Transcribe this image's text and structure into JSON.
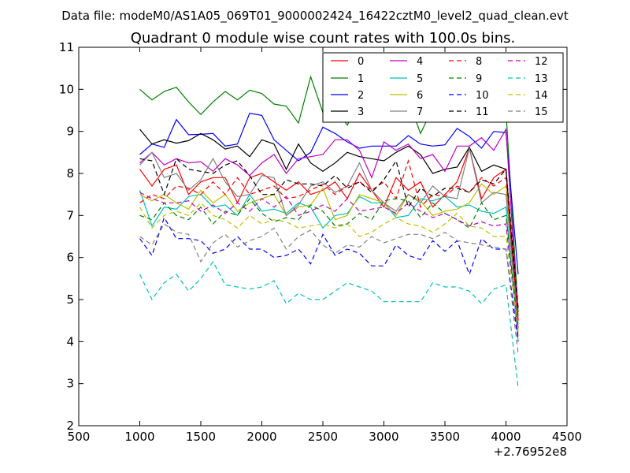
{
  "chart_data": {
    "type": "line",
    "suptitle": "Data file: modeM0/AS1A05_069T01_9000002424_16422cztM0_level2_quad_clean.evt",
    "title": "Quadrant 0 module wise count rates with 100.0s bins.",
    "xlabel": "",
    "ylabel": "",
    "x_offset_label": "+2.76952e8",
    "xlim": [
      500,
      4500
    ],
    "ylim": [
      2,
      11
    ],
    "xticks": [
      "500",
      "1000",
      "1500",
      "2000",
      "2500",
      "3000",
      "3500",
      "4000",
      "4500"
    ],
    "yticks": [
      "2",
      "3",
      "4",
      "5",
      "6",
      "7",
      "8",
      "9",
      "10",
      "11"
    ],
    "grid": false,
    "legend_position": "top-right",
    "legend_columns": 4,
    "x": [
      1000,
      1100,
      1200,
      1300,
      1400,
      1500,
      1600,
      1700,
      1800,
      1900,
      2000,
      2100,
      2200,
      2300,
      2400,
      2500,
      2600,
      2700,
      2800,
      2900,
      3000,
      3100,
      3200,
      3300,
      3400,
      3500,
      3600,
      3700,
      3800,
      3900,
      4000,
      4100
    ],
    "series": [
      {
        "name": "0",
        "color": "#ff0000",
        "dash": "solid",
        "values": [
          8.1,
          7.7,
          8.1,
          8.2,
          7.5,
          7.8,
          7.9,
          7.9,
          7.3,
          7.9,
          8.0,
          7.8,
          7.6,
          7.8,
          7.5,
          7.6,
          7.8,
          7.4,
          8.0,
          7.6,
          7.2,
          7.9,
          7.6,
          7.8,
          7.2,
          7.5,
          7.8,
          8.6,
          7.4,
          7.9,
          8.1,
          4.6
        ]
      },
      {
        "name": "1",
        "color": "#008000",
        "dash": "solid",
        "values": [
          10.0,
          9.75,
          9.95,
          10.05,
          9.7,
          9.4,
          9.7,
          9.95,
          9.75,
          9.98,
          9.9,
          9.65,
          9.6,
          9.2,
          10.3,
          9.45,
          9.55,
          9.15,
          9.7,
          9.3,
          9.7,
          9.3,
          9.75,
          8.95,
          9.55,
          9.3,
          9.6,
          9.75,
          9.7,
          9.75,
          9.5,
          4.7
        ]
      },
      {
        "name": "2",
        "color": "#0000ff",
        "dash": "solid",
        "values": [
          8.45,
          8.7,
          8.62,
          9.28,
          8.92,
          8.93,
          8.95,
          8.65,
          8.7,
          9.43,
          9.38,
          8.8,
          8.55,
          8.3,
          8.5,
          9.1,
          8.95,
          8.75,
          8.6,
          8.65,
          8.65,
          8.65,
          8.9,
          8.7,
          8.65,
          8.68,
          9.07,
          8.88,
          8.6,
          9.0,
          8.97,
          5.6
        ]
      },
      {
        "name": "3",
        "color": "#000000",
        "dash": "solid",
        "values": [
          9.05,
          8.7,
          8.8,
          8.72,
          8.78,
          8.95,
          8.8,
          8.58,
          8.65,
          8.4,
          8.8,
          8.7,
          8.1,
          8.7,
          8.25,
          8.05,
          8.25,
          8.5,
          8.4,
          8.35,
          8.3,
          8.5,
          8.65,
          8.45,
          8.0,
          8.1,
          8.15,
          8.62,
          8.05,
          8.2,
          8.1,
          4.3
        ]
      },
      {
        "name": "4",
        "color": "#bf00bf",
        "dash": "solid",
        "values": [
          8.25,
          8.5,
          8.2,
          8.35,
          8.25,
          8.28,
          8.05,
          8.35,
          8.2,
          7.95,
          8.25,
          8.45,
          8.0,
          8.35,
          8.4,
          8.45,
          8.8,
          8.8,
          8.55,
          7.9,
          8.75,
          8.55,
          8.7,
          8.35,
          8.45,
          8.05,
          8.65,
          8.65,
          8.85,
          8.55,
          9.05,
          4.5
        ]
      },
      {
        "name": "5",
        "color": "#00bfbf",
        "dash": "solid",
        "values": [
          7.6,
          6.75,
          7.2,
          7.15,
          7.45,
          7.5,
          7.2,
          7.25,
          7.0,
          7.5,
          7.1,
          7.15,
          7.05,
          7.3,
          7.2,
          6.7,
          7.0,
          7.05,
          7.45,
          7.3,
          7.3,
          6.95,
          7.0,
          7.4,
          7.35,
          7.45,
          7.2,
          7.25,
          7.1,
          7.05,
          7.2,
          4.0
        ]
      },
      {
        "name": "6",
        "color": "#bfbf00",
        "dash": "solid",
        "values": [
          7.5,
          7.35,
          7.5,
          7.3,
          7.15,
          7.6,
          7.3,
          7.5,
          7.1,
          7.3,
          7.4,
          7.5,
          7.0,
          7.2,
          7.25,
          7.65,
          6.9,
          7.0,
          7.5,
          7.4,
          7.3,
          7.0,
          7.5,
          7.35,
          7.0,
          7.1,
          7.15,
          7.3,
          7.75,
          7.5,
          7.7,
          4.2
        ]
      },
      {
        "name": "7",
        "color": "#808080",
        "dash": "solid",
        "values": [
          8.2,
          8.5,
          7.9,
          8.0,
          7.6,
          7.85,
          8.35,
          7.8,
          7.45,
          7.5,
          7.95,
          7.9,
          7.0,
          7.25,
          7.7,
          7.8,
          7.55,
          7.7,
          8.25,
          7.6,
          7.3,
          7.1,
          7.5,
          7.3,
          7.7,
          7.45,
          7.4,
          8.6,
          7.3,
          7.55,
          7.5,
          4.4
        ]
      },
      {
        "name": "8",
        "color": "#ff0000",
        "dash": "dashdot",
        "values": [
          7.3,
          7.5,
          7.4,
          7.7,
          7.65,
          7.5,
          7.8,
          7.5,
          7.9,
          7.5,
          7.6,
          7.7,
          7.4,
          7.45,
          7.6,
          7.75,
          7.5,
          7.7,
          7.8,
          7.6,
          7.8,
          7.4,
          8.3,
          7.2,
          7.5,
          7.45,
          7.7,
          7.55,
          7.9,
          7.7,
          7.9,
          4.5
        ]
      },
      {
        "name": "9",
        "color": "#008000",
        "dash": "dashdot",
        "values": [
          7.0,
          6.9,
          7.3,
          7.0,
          6.9,
          7.2,
          6.8,
          7.1,
          7.0,
          7.4,
          7.05,
          6.85,
          6.95,
          6.9,
          7.25,
          7.1,
          6.75,
          6.8,
          7.05,
          6.9,
          7.35,
          7.4,
          7.35,
          6.95,
          7.3,
          7.05,
          6.9,
          6.7,
          7.3,
          6.9,
          7.0,
          4.3
        ]
      },
      {
        "name": "10",
        "color": "#0000ff",
        "dash": "dashdot",
        "values": [
          6.45,
          6.05,
          6.95,
          6.45,
          6.45,
          6.4,
          6.1,
          6.2,
          6.5,
          6.2,
          6.2,
          6.0,
          6.05,
          6.2,
          5.85,
          6.55,
          6.05,
          6.2,
          6.1,
          5.8,
          5.8,
          6.3,
          6.05,
          5.95,
          6.4,
          6.15,
          6.4,
          5.6,
          6.45,
          6.2,
          6.2,
          4.0
        ]
      },
      {
        "name": "11",
        "color": "#000000",
        "dash": "dashdot",
        "values": [
          8.35,
          8.3,
          7.5,
          8.35,
          8.1,
          8.05,
          8.0,
          8.2,
          8.3,
          7.95,
          7.5,
          7.5,
          7.85,
          7.75,
          7.75,
          7.7,
          7.95,
          7.65,
          7.8,
          7.55,
          7.85,
          8.3,
          7.2,
          7.65,
          7.45,
          7.65,
          7.65,
          7.55,
          7.85,
          7.75,
          8.1,
          4.8
        ]
      },
      {
        "name": "12",
        "color": "#bf00bf",
        "dash": "dashdot",
        "values": [
          7.55,
          7.4,
          7.3,
          7.3,
          7.35,
          7.1,
          7.25,
          7.05,
          7.3,
          7.1,
          7.4,
          7.2,
          7.45,
          7.0,
          7.1,
          7.25,
          7.1,
          7.4,
          7.1,
          7.15,
          7.2,
          7.05,
          7.3,
          7.1,
          6.95,
          7.05,
          6.9,
          6.75,
          6.85,
          6.75,
          6.8,
          4.1
        ]
      },
      {
        "name": "13",
        "color": "#00bfbf",
        "dash": "dashdot",
        "values": [
          5.6,
          5.0,
          5.4,
          5.6,
          5.2,
          5.5,
          5.9,
          5.35,
          5.3,
          5.25,
          5.3,
          5.45,
          4.9,
          5.15,
          5.0,
          5.0,
          5.2,
          5.4,
          5.3,
          5.2,
          4.95,
          4.95,
          4.95,
          4.95,
          5.4,
          5.3,
          5.3,
          5.2,
          4.9,
          5.25,
          5.35,
          2.9
        ]
      },
      {
        "name": "14",
        "color": "#bfbf00",
        "dash": "dashdot",
        "values": [
          7.2,
          6.7,
          7.0,
          7.1,
          7.0,
          7.3,
          7.0,
          6.9,
          6.7,
          7.0,
          6.8,
          6.9,
          6.85,
          6.7,
          6.75,
          6.8,
          6.7,
          6.8,
          6.5,
          6.6,
          6.8,
          6.95,
          6.8,
          6.75,
          6.6,
          6.8,
          7.05,
          6.75,
          6.7,
          6.5,
          6.5,
          4.3
        ]
      },
      {
        "name": "15",
        "color": "#808080",
        "dash": "dashdot",
        "values": [
          6.5,
          6.3,
          6.8,
          6.6,
          6.55,
          5.9,
          6.35,
          6.55,
          6.25,
          6.4,
          6.5,
          6.7,
          6.2,
          6.5,
          6.65,
          6.3,
          6.1,
          6.3,
          6.25,
          6.5,
          6.35,
          6.45,
          6.55,
          6.55,
          6.45,
          6.6,
          6.4,
          6.35,
          6.3,
          6.25,
          6.2,
          3.7
        ]
      }
    ]
  }
}
